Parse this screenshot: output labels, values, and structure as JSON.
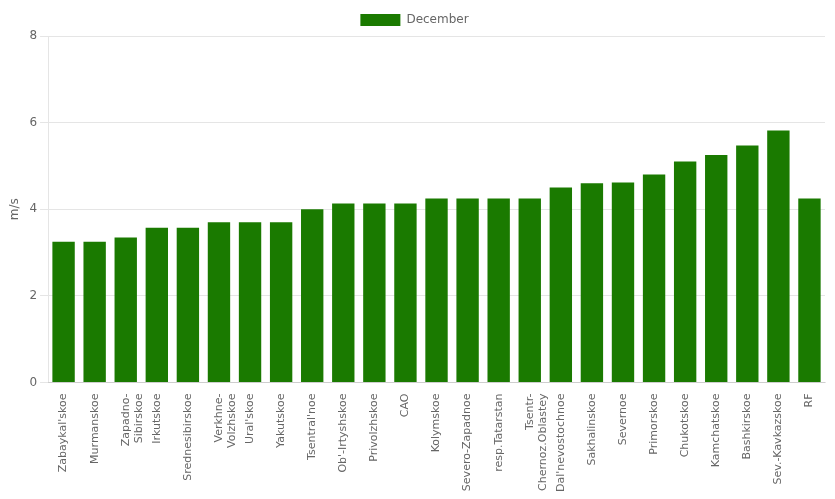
{
  "chart_data": {
    "type": "bar",
    "categories": [
      "Zabaykal'skoe",
      "Murmanskoe",
      "Zapadno-\nSibirskoe",
      "Irkutskoe",
      "Srednesibirskoe",
      "Verkhne-\nVolzhskoe",
      "Ural'skoe",
      "Yakutskoe",
      "Tsentral'noe",
      "Ob'-Irtyshskoe",
      "Privolzhskoe",
      "CAO",
      "Kolymskoe",
      "Severo-Zapadnoe",
      "resp.Tatarstan",
      "Tsentr-\nChernoz.Oblastey",
      "Dal'nevostochnoe",
      "Sakhalinskoe",
      "Severnoe",
      "Primorskoe",
      "Chukotskoe",
      "Kamchatskoe",
      "Bashkirskoe",
      "Sev.-Kavkazskoe",
      "RF"
    ],
    "series": [
      {
        "name": "December",
        "color": "#1a7a00",
        "values": [
          3.25,
          3.25,
          3.35,
          3.57,
          3.57,
          3.7,
          3.7,
          3.7,
          4.0,
          4.13,
          4.13,
          4.13,
          4.25,
          4.25,
          4.25,
          4.25,
          4.5,
          4.6,
          4.62,
          4.8,
          5.1,
          5.25,
          5.47,
          5.82,
          4.25
        ]
      }
    ],
    "ylabel": "m/s",
    "ylim": [
      0,
      8
    ],
    "yticks": [
      0,
      2,
      4,
      6,
      8
    ],
    "grid": true,
    "legend": "top"
  }
}
